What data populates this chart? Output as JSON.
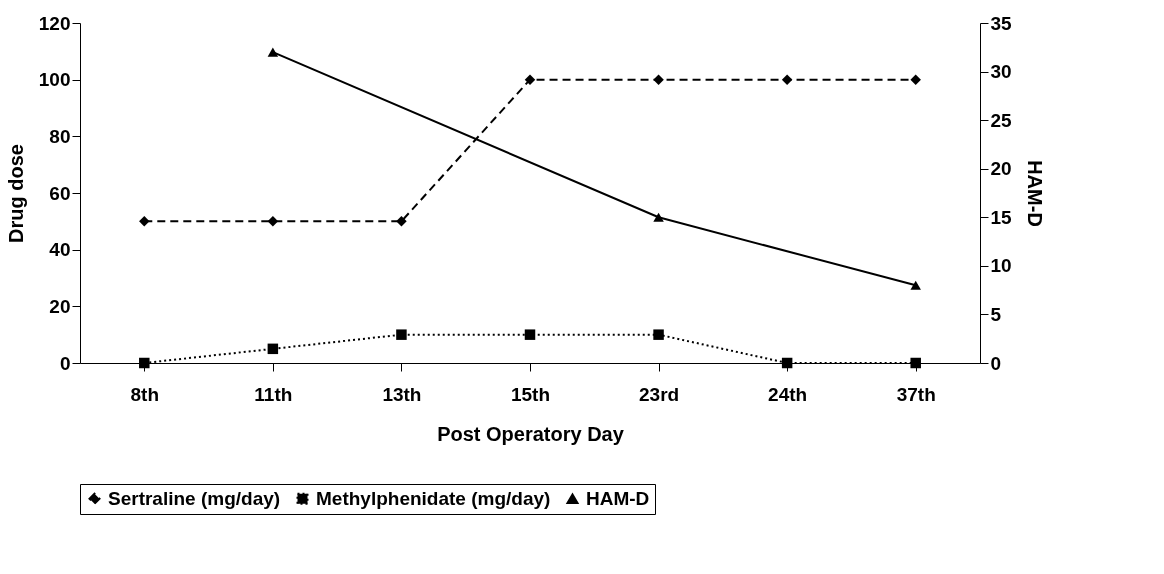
{
  "chart_data": {
    "type": "line",
    "xlabel": "Post Operatory Day",
    "ylabel": "Drug dose",
    "y2label": "HAM-D",
    "categories": [
      "8th",
      "11th",
      "13th",
      "15th",
      "23rd",
      "24th",
      "37th"
    ],
    "series": [
      {
        "name": "Sertraline (mg/day)",
        "color": "#000000",
        "marker": "diamond",
        "line_style": "dashed",
        "values": [
          50,
          50,
          50,
          100,
          100,
          100,
          100
        ]
      },
      {
        "name": "Methylphenidate (mg/day)",
        "color": "#000000",
        "marker": "square",
        "line_style": "dotted",
        "values": [
          0,
          5,
          10,
          10,
          10,
          0,
          0
        ]
      },
      {
        "name": "HAM-D",
        "color": "#000000",
        "marker": "triangle",
        "line_style": "solid",
        "axis": "y2",
        "x": [
          "11th",
          "23rd",
          "37th"
        ],
        "values": [
          32,
          15,
          8
        ]
      }
    ],
    "ylim": [
      0,
      120
    ],
    "yticks": [
      0,
      20,
      40,
      60,
      80,
      100,
      120
    ],
    "y2lim": [
      0,
      35
    ],
    "y2ticks": [
      0,
      5,
      10,
      15,
      20,
      25,
      30,
      35
    ],
    "grid": false,
    "legend": "bottom"
  }
}
